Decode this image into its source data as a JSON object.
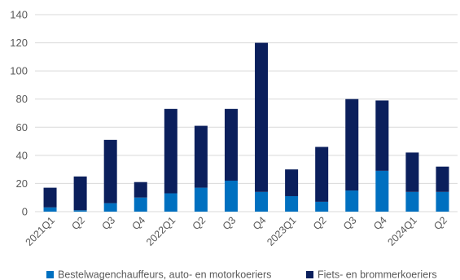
{
  "chart_data": {
    "type": "bar",
    "stacked": true,
    "categories": [
      "2021Q1",
      "Q2",
      "Q3",
      "Q4",
      "2022Q1",
      "Q2",
      "Q3",
      "Q4",
      "2023Q1",
      "Q2",
      "Q3",
      "Q4",
      "2024Q1",
      "Q2"
    ],
    "series": [
      {
        "name": "Bestelwagenchauffeurs, auto- en motorkoeriers",
        "color": "#0070c0",
        "values": [
          3,
          1,
          6,
          10,
          13,
          17,
          22,
          14,
          11,
          7,
          15,
          29,
          14,
          14
        ]
      },
      {
        "name": "Fiets- en brommerkoeriers",
        "color": "#0b1f5c",
        "values": [
          14,
          24,
          45,
          11,
          60,
          44,
          51,
          106,
          19,
          39,
          65,
          50,
          28,
          18
        ]
      }
    ],
    "ylim": [
      0,
      140
    ],
    "yticks": [
      0,
      20,
      40,
      60,
      80,
      100,
      120,
      140
    ],
    "grid": true,
    "legend_position": "bottom"
  }
}
